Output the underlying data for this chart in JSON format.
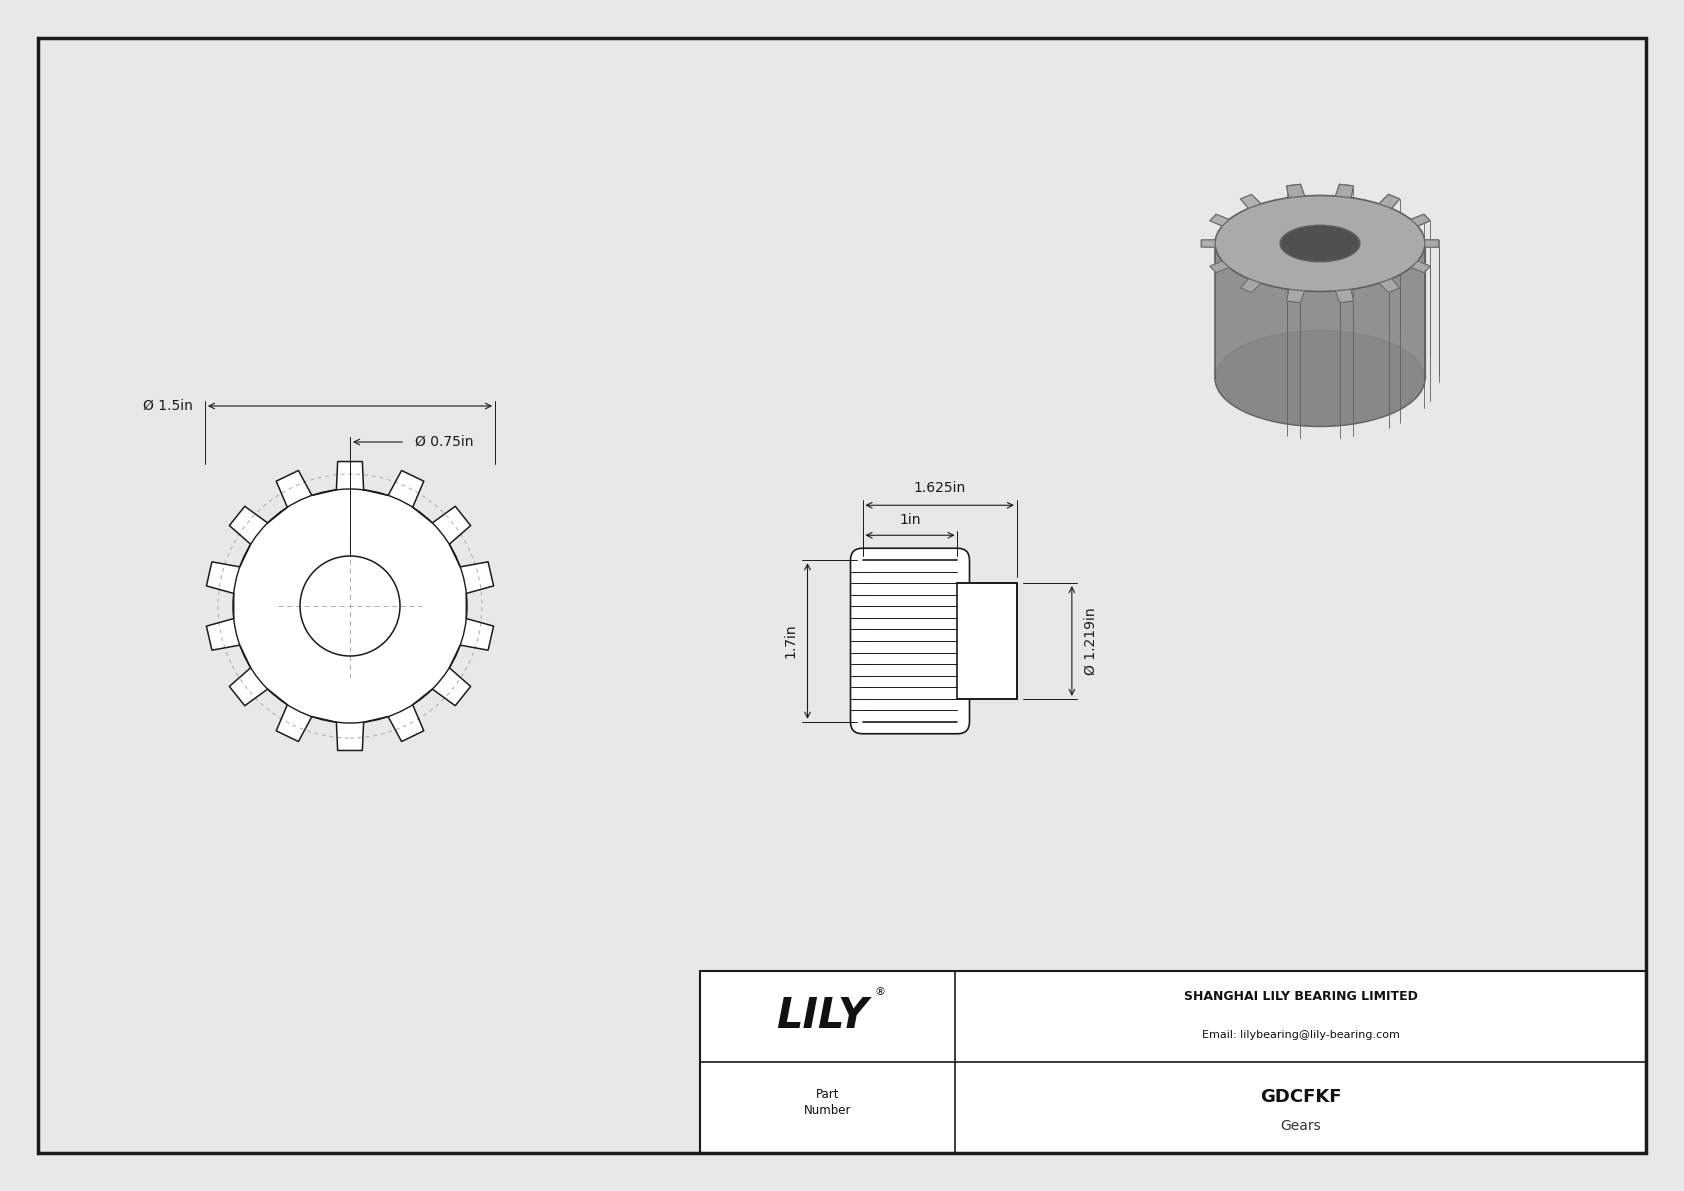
{
  "bg_color": "#e8e8e8",
  "drawing_bg": "#ffffff",
  "line_color": "#1a1a1a",
  "dim_color": "#1a1a1a",
  "company": "SHANGHAI LILY BEARING LIMITED",
  "email": "Email: lilybearing@lily-bearing.com",
  "brand": "LILY",
  "dim_od": "Ø 1.5in",
  "dim_bore": "Ø 0.75in",
  "dim_length": "1.625in",
  "dim_face": "1in",
  "dim_height": "1.7in",
  "dim_shaft_od": "Ø 1.219in",
  "part_number": "GDCFKF",
  "part_type": "Gears",
  "num_teeth": 14
}
